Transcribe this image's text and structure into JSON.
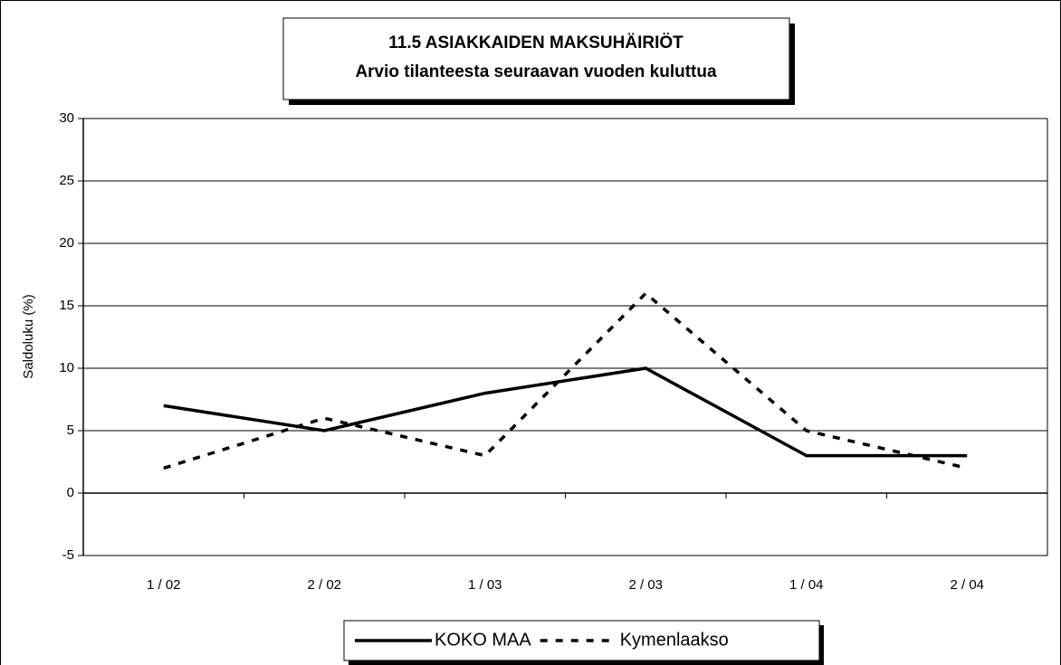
{
  "chart_data": {
    "type": "line",
    "title": "11.5 ASIAKKAIDEN MAKSUHÄIRIÖT",
    "subtitle": "Arvio tilanteesta seuraavan vuoden kuluttua",
    "y_label": "Saldoluku (%)",
    "categories": [
      "1 / 02",
      "2 / 02",
      "1 / 03",
      "2 / 03",
      "1 / 04",
      "2 / 04"
    ],
    "series": [
      {
        "name": "KOKO MAA",
        "color": "#000000",
        "dash": "solid",
        "values": [
          7,
          5,
          8,
          10,
          3,
          3
        ]
      },
      {
        "name": "Kymenlaakso",
        "color": "#000000",
        "dash": "dashed",
        "values": [
          2,
          6,
          3,
          16,
          5,
          2
        ]
      }
    ],
    "ylim": [
      -5,
      30
    ],
    "yticks": [
      -5,
      0,
      5,
      10,
      15,
      20,
      25,
      30
    ],
    "grid": true,
    "legend": "bottom"
  }
}
